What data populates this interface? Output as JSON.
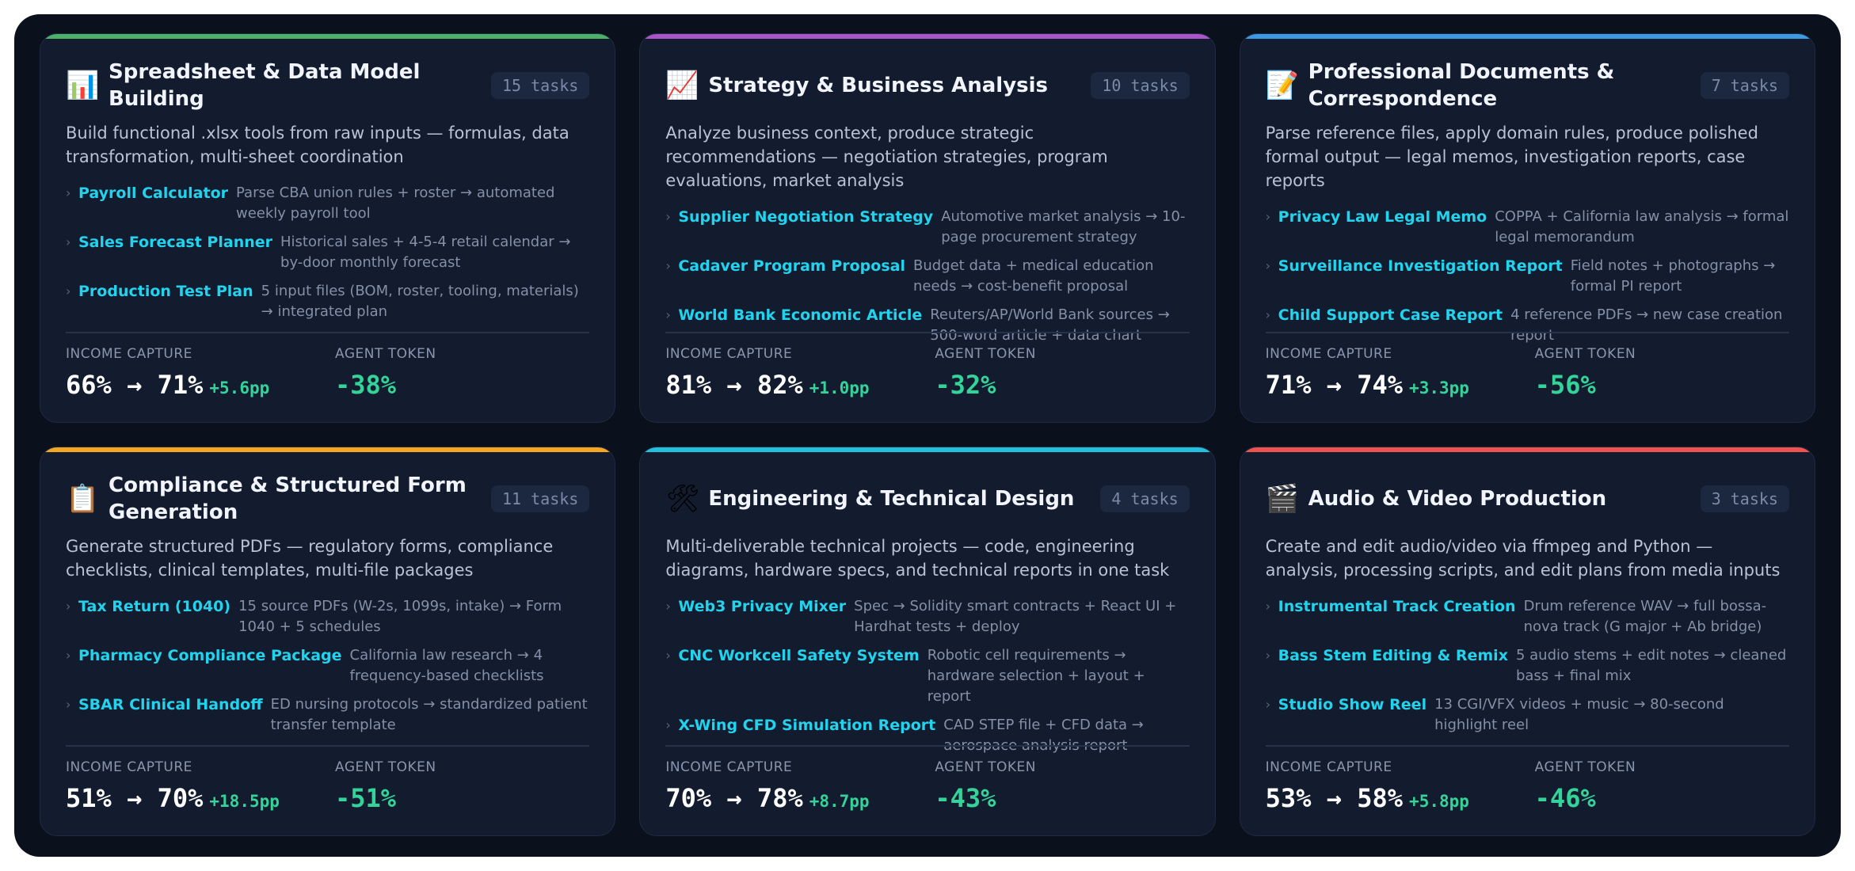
{
  "labels": {
    "income_capture": "INCOME CAPTURE",
    "agent_token": "AGENT TOKEN"
  },
  "cards": [
    {
      "accent": "#4caf6a",
      "icon": "📊",
      "icon_name": "bar-chart-icon",
      "title": "Spreadsheet & Data Model Building",
      "badge": "15 tasks",
      "desc": "Build functional .xlsx tools from raw inputs — formulas, data transformation, multi-sheet coordination",
      "tasks": [
        {
          "name": "Payroll Calculator",
          "desc": "Parse CBA union rules + roster → automated weekly payroll tool"
        },
        {
          "name": "Sales Forecast Planner",
          "desc": "Historical sales + 4-5-4 retail calendar → by-door monthly forecast"
        },
        {
          "name": "Production Test Plan",
          "desc": "5 input files (BOM, roster, tooling, materials) → integrated plan"
        }
      ],
      "income": "66% → 71%",
      "income_delta": "+5.6pp",
      "token": "-38%"
    },
    {
      "accent": "#a855c7",
      "icon": "📈",
      "icon_name": "trend-chart-icon",
      "title": "Strategy & Business Analysis",
      "badge": "10 tasks",
      "desc": "Analyze business context, produce strategic recommendations — negotiation strategies, program evaluations, market analysis",
      "tasks": [
        {
          "name": "Supplier Negotiation Strategy",
          "desc": "Automotive market analysis → 10-page procurement strategy"
        },
        {
          "name": "Cadaver Program Proposal",
          "desc": "Budget data + medical education needs → cost-benefit proposal"
        },
        {
          "name": "World Bank Economic Article",
          "desc": "Reuters/AP/World Bank sources → 500-word article + data chart"
        }
      ],
      "income": "81% → 82%",
      "income_delta": "+1.0pp",
      "token": "-32%"
    },
    {
      "accent": "#3b9ae1",
      "icon": "📝",
      "icon_name": "memo-icon",
      "title": "Professional Documents & Correspondence",
      "badge": "7 tasks",
      "desc": "Parse reference files, apply domain rules, produce polished formal output — legal memos, investigation reports, case reports",
      "tasks": [
        {
          "name": "Privacy Law Legal Memo",
          "desc": "COPPA + California law analysis → formal legal memorandum"
        },
        {
          "name": "Surveillance Investigation Report",
          "desc": "Field notes + photographs → formal PI report"
        },
        {
          "name": "Child Support Case Report",
          "desc": "4 reference PDFs → new case creation report"
        }
      ],
      "income": "71% → 74%",
      "income_delta": "+3.3pp",
      "token": "-56%"
    },
    {
      "accent": "#f5a623",
      "icon": "📋",
      "icon_name": "clipboard-icon",
      "title": "Compliance & Structured Form Generation",
      "badge": "11 tasks",
      "desc": "Generate structured PDFs — regulatory forms, compliance checklists, clinical templates, multi-file packages",
      "tasks": [
        {
          "name": "Tax Return (1040)",
          "desc": "15 source PDFs (W-2s, 1099s, intake) → Form 1040 + 5 schedules"
        },
        {
          "name": "Pharmacy Compliance Package",
          "desc": "California law research → 4 frequency-based checklists"
        },
        {
          "name": "SBAR Clinical Handoff",
          "desc": "ED nursing protocols → standardized patient transfer template"
        }
      ],
      "income": "51% → 70%",
      "income_delta": "+18.5pp",
      "token": "-51%"
    },
    {
      "accent": "#22c0dc",
      "icon": "🛠",
      "icon_name": "tools-icon",
      "title": "Engineering & Technical Design",
      "badge": "4 tasks",
      "desc": "Multi-deliverable technical projects — code, engineering diagrams, hardware specs, and technical reports in one task",
      "tasks": [
        {
          "name": "Web3 Privacy Mixer",
          "desc": "Spec → Solidity smart contracts + React UI + Hardhat tests + deploy"
        },
        {
          "name": "CNC Workcell Safety System",
          "desc": "Robotic cell requirements → hardware selection + layout + report"
        },
        {
          "name": "X-Wing CFD Simulation Report",
          "desc": "CAD STEP file + CFD data → aerospace analysis report"
        }
      ],
      "income": "70% → 78%",
      "income_delta": "+8.7pp",
      "token": "-43%"
    },
    {
      "accent": "#ef5350",
      "icon": "🎬",
      "icon_name": "clapper-icon",
      "title": "Audio & Video Production",
      "badge": "3 tasks",
      "desc": "Create and edit audio/video via ffmpeg and Python — analysis, processing scripts, and edit plans from media inputs",
      "tasks": [
        {
          "name": "Instrumental Track Creation",
          "desc": "Drum reference WAV → full bossa-nova track (G major + Ab bridge)"
        },
        {
          "name": "Bass Stem Editing & Remix",
          "desc": "5 audio stems + edit notes → cleaned bass + final mix"
        },
        {
          "name": "Studio Show Reel",
          "desc": "13 CGI/VFX videos + music → 80-second highlight reel"
        }
      ],
      "income": "53% → 58%",
      "income_delta": "+5.8pp",
      "token": "-46%"
    }
  ]
}
